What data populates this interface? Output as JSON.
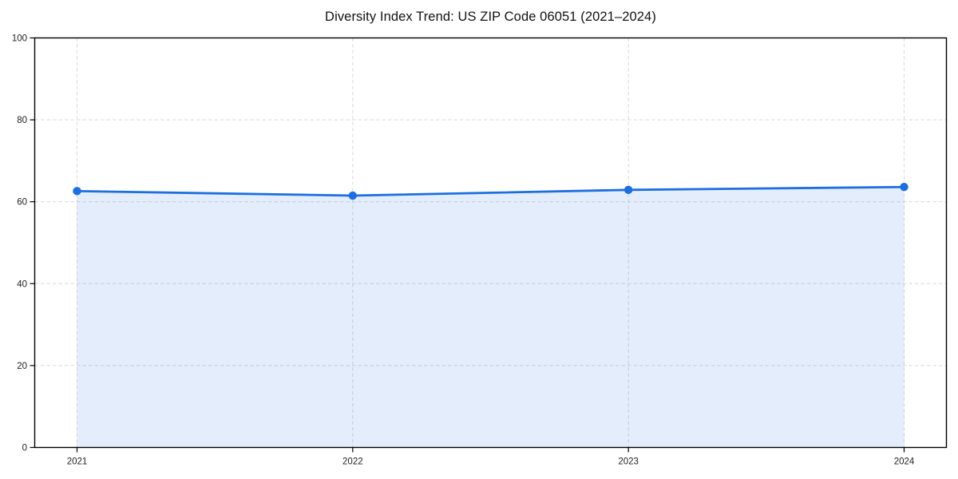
{
  "title": "Diversity Index Trend: US ZIP Code 06051 (2021–2024)",
  "colors": {
    "line": "#1d6fdf",
    "marker": "#1d6fdf",
    "fill": "#1d6fdf",
    "fill_opacity": "0.12",
    "grid": "#d9d9d9",
    "spine": "#000000",
    "tick_text": "#222222",
    "background": "#ffffff"
  },
  "chart_data": {
    "type": "area",
    "title": "Diversity Index Trend: US ZIP Code 06051 (2021–2024)",
    "xlabel": "",
    "ylabel": "",
    "x": [
      2021,
      2022,
      2023,
      2024
    ],
    "xtick_labels": [
      "2021",
      "2022",
      "2023",
      "2024"
    ],
    "series": [
      {
        "name": "Diversity Index",
        "values": [
          62.6,
          61.5,
          62.9,
          63.6
        ]
      }
    ],
    "ylim": [
      0,
      100
    ],
    "yticks": [
      0,
      20,
      40,
      60,
      80,
      100
    ],
    "ytick_labels": [
      "0",
      "20",
      "40",
      "60",
      "80",
      "100"
    ],
    "grid": true,
    "grid_style": "dashed",
    "legend": "none",
    "marker": "circle",
    "area_baseline": 0
  }
}
